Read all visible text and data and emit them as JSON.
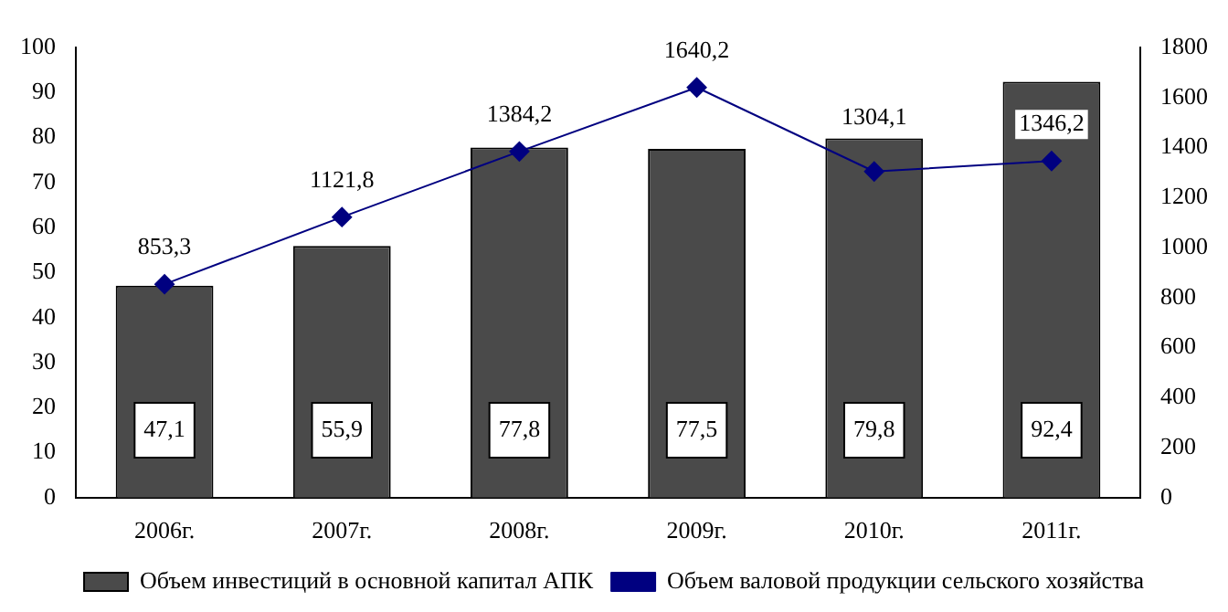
{
  "chart_data": {
    "type": "bar",
    "categories": [
      "2006г.",
      "2007г.",
      "2008г.",
      "2009г.",
      "2010г.",
      "2011г."
    ],
    "series": [
      {
        "name": "Объем инвестиций в основной капитал АПК",
        "color": "#4a4a4a",
        "values": [
          47.1,
          55.9,
          77.8,
          77.5,
          79.8,
          92.4
        ],
        "value_labels": [
          "47,1",
          "55,9",
          "77,8",
          "77,5",
          "79,8",
          "92,4"
        ]
      },
      {
        "name": "Объем валовой продукции сельского хозяйства",
        "type": "line",
        "axis": "y2",
        "color": "#000080",
        "values": [
          853.3,
          1121.8,
          1384.2,
          1640.2,
          1304.1,
          1346.2
        ],
        "value_labels": [
          "853,3",
          "1121,8",
          "1384,2",
          "1640,2",
          "1304,1",
          "1346,2"
        ]
      }
    ],
    "ylim": [
      0,
      100
    ],
    "yticks": [
      0,
      10,
      20,
      30,
      40,
      50,
      60,
      70,
      80,
      90,
      100
    ],
    "y2lim": [
      0,
      1800
    ],
    "y2ticks": [
      0,
      200,
      400,
      600,
      800,
      1000,
      1200,
      1400,
      1600,
      1800
    ],
    "grid": false,
    "legend": "bottom",
    "marker": "diamond",
    "line_style": "solid"
  }
}
